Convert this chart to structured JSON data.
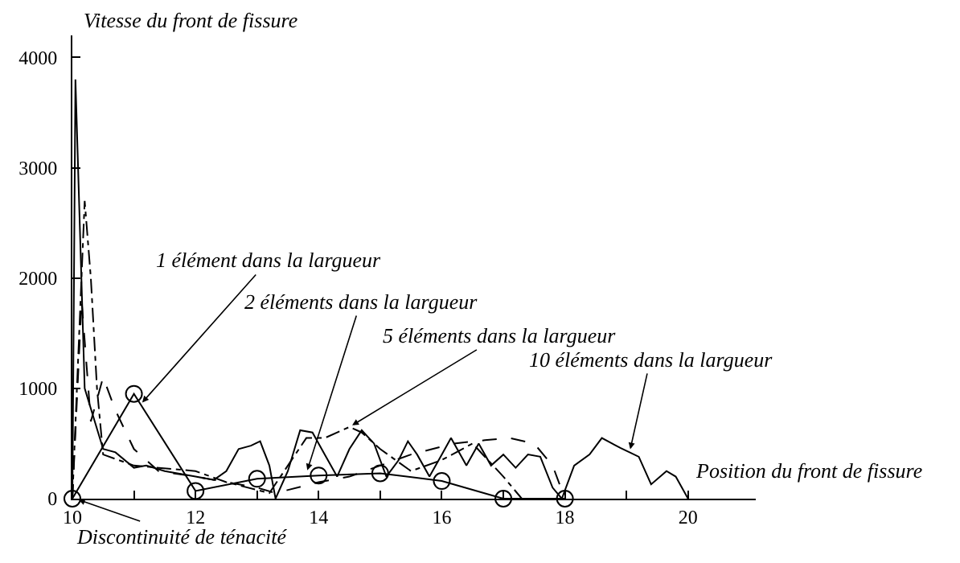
{
  "chart_data": {
    "type": "line",
    "xlabel": "Position du front de fissure",
    "ylabel": "Vitesse du front de fissure",
    "xlim": [
      10,
      21.1
    ],
    "ylim": [
      0,
      4200
    ],
    "xticks": [
      10,
      {
        "value": 11,
        "label": null
      },
      12,
      {
        "value": 13,
        "label": null
      },
      14,
      {
        "value": 15,
        "label": null
      },
      16,
      {
        "value": 17,
        "label": null
      },
      18,
      {
        "value": 19,
        "label": null
      },
      20
    ],
    "yticks": [
      0,
      1000,
      2000,
      3000,
      4000
    ],
    "series": [
      {
        "color": "#000000",
        "line_style": "solid",
        "marker": "circle",
        "x": [
          10,
          11,
          12,
          13,
          14,
          15,
          16,
          17,
          18
        ],
        "values": [
          0,
          950,
          70,
          180,
          210,
          230,
          160,
          0,
          0
        ]
      },
      {
        "color": "#000000",
        "line_style": "dashed",
        "marker": "none",
        "x": [
          10,
          10.15,
          10.3,
          10.5,
          10.7,
          11,
          11.4,
          12,
          12.5,
          13,
          13.3,
          14,
          14.5,
          15,
          15.5,
          16.2,
          16.7,
          17.1,
          17.5,
          17.8,
          18
        ],
        "values": [
          0,
          1800,
          700,
          1100,
          800,
          450,
          250,
          200,
          150,
          100,
          50,
          150,
          200,
          300,
          400,
          500,
          530,
          550,
          500,
          300,
          0
        ]
      },
      {
        "color": "#000000",
        "line_style": "dotted",
        "marker": "none",
        "x": [
          10,
          10.2,
          10.3,
          10.4,
          10.5,
          11,
          12,
          12.5,
          13.2,
          13.5,
          13.8,
          14.1,
          14.5,
          14.7,
          15,
          15.5,
          16,
          16.5,
          17,
          17.3
        ],
        "values": [
          0,
          2700,
          2000,
          1000,
          400,
          300,
          250,
          150,
          50,
          300,
          550,
          550,
          650,
          600,
          450,
          250,
          350,
          500,
          200,
          0
        ]
      },
      {
        "color": "#000000",
        "line_style": "solid",
        "marker": "none",
        "x": [
          10,
          10.05,
          10.2,
          10.5,
          10.7,
          11,
          11.2,
          11.5,
          12,
          12.3,
          12.5,
          12.7,
          12.9,
          13.05,
          13.2,
          13.3,
          13.5,
          13.7,
          13.9,
          14.1,
          14.3,
          14.5,
          14.7,
          14.9,
          15.1,
          15.3,
          15.45,
          15.6,
          15.8,
          16,
          16.15,
          16.4,
          16.6,
          16.8,
          17,
          17.2,
          17.4,
          17.6,
          17.8,
          17.95,
          18.15,
          18.4,
          18.6,
          18.9,
          19.05,
          19.2,
          19.4,
          19.65,
          19.8,
          20
        ],
        "values": [
          0,
          3800,
          1000,
          450,
          420,
          280,
          300,
          250,
          200,
          170,
          250,
          450,
          480,
          520,
          300,
          0,
          250,
          620,
          600,
          400,
          200,
          450,
          620,
          500,
          200,
          350,
          520,
          400,
          200,
          400,
          550,
          300,
          500,
          300,
          400,
          280,
          400,
          380,
          100,
          0,
          300,
          400,
          550,
          460,
          420,
          380,
          130,
          250,
          200,
          0
        ]
      }
    ],
    "annotations": [
      {
        "text": "1 élément dans la largueur",
        "x": 11.1,
        "y": 850
      },
      {
        "text": "2 éléments dans la largueur",
        "x": 13.8,
        "y": 230
      },
      {
        "text": "5 éléments dans la largueur",
        "x": 14.5,
        "y": 650
      },
      {
        "text": "10 éléments dans la largueur",
        "x": 19.05,
        "y": 420
      },
      {
        "text": "Discontinuité de ténacité",
        "x": 10.05,
        "y": 0
      }
    ]
  }
}
